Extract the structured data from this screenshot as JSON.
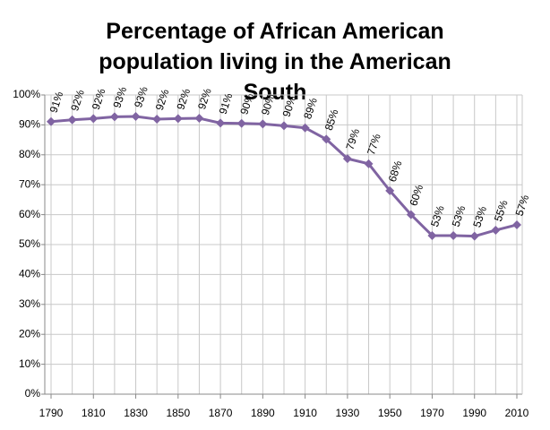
{
  "chart_data": {
    "type": "line",
    "title": "Percentage of African American population living in the American South",
    "x": [
      1790,
      1800,
      1810,
      1820,
      1830,
      1840,
      1850,
      1860,
      1870,
      1880,
      1890,
      1900,
      1910,
      1920,
      1930,
      1940,
      1950,
      1960,
      1970,
      1980,
      1990,
      2000,
      2010
    ],
    "series": [
      {
        "color": "#8064a2",
        "values": [
          91.1,
          91.7,
          92.1,
          92.7,
          92.8,
          91.9,
          92.1,
          92.2,
          90.6,
          90.5,
          90.3,
          89.7,
          89.0,
          85.2,
          78.7,
          77.0,
          68.0,
          60.0,
          53.0,
          53.0,
          52.8,
          54.8,
          56.6
        ],
        "value_labels": [
          "91%",
          "92%",
          "92%",
          "93%",
          "93%",
          "92%",
          "92%",
          "92%",
          "91%",
          "90%",
          "90%",
          "90%",
          "89%",
          "85%",
          "79%",
          "77%",
          "68%",
          "60%",
          "53%",
          "53%",
          "53%",
          "55%",
          "57%"
        ]
      }
    ],
    "xlim": [
      1790,
      2010
    ],
    "xticks": [
      1790,
      1810,
      1830,
      1850,
      1870,
      1890,
      1910,
      1930,
      1950,
      1970,
      1990,
      2010
    ],
    "ylim": [
      0,
      100
    ],
    "yticks": [
      {
        "value": 0,
        "label": "0%"
      },
      {
        "value": 10,
        "label": "10%"
      },
      {
        "value": 20,
        "label": "20%"
      },
      {
        "value": 30,
        "label": "30%"
      },
      {
        "value": 40,
        "label": "40%"
      },
      {
        "value": 50,
        "label": "50%"
      },
      {
        "value": 60,
        "label": "60%"
      },
      {
        "value": 70,
        "label": "70%"
      },
      {
        "value": 80,
        "label": "80%"
      },
      {
        "value": 90,
        "label": "90%"
      },
      {
        "value": 100,
        "label": "100%"
      }
    ],
    "grid": true
  }
}
